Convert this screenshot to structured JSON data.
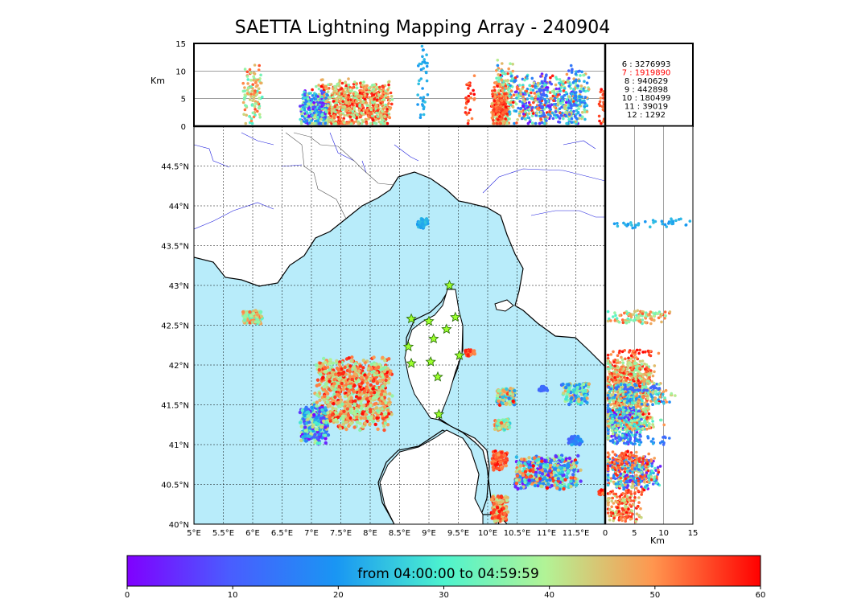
{
  "chart_data": {
    "type": "scatter",
    "title": "SAETTA Lightning Mapping Array - 240904",
    "map": {
      "lon_ticks": [
        "5°E",
        "5.5°E",
        "6°E",
        "6.5°E",
        "7°E",
        "7.5°E",
        "8°E",
        "8.5°E",
        "9°E",
        "9.5°E",
        "10°E",
        "10.5°E",
        "11°E",
        "11.5°E"
      ],
      "lat_ticks": [
        "40°N",
        "40.5°N",
        "41°N",
        "41.5°N",
        "42°N",
        "42.5°N",
        "43°N",
        "43.5°N",
        "44°N",
        "44.5°N"
      ],
      "lon_range": [
        5,
        12
      ],
      "lat_range": [
        40,
        45
      ],
      "grid": true,
      "sea_color": "#b8ecfa",
      "stations": [
        [
          8.7,
          42.58
        ],
        [
          9.0,
          42.55
        ],
        [
          9.45,
          42.6
        ],
        [
          9.3,
          42.45
        ],
        [
          9.08,
          42.33
        ],
        [
          8.65,
          42.23
        ],
        [
          9.52,
          42.12
        ],
        [
          8.7,
          42.02
        ],
        [
          9.03,
          42.04
        ],
        [
          9.15,
          41.85
        ],
        [
          9.17,
          41.38
        ],
        [
          9.35,
          43.0
        ]
      ]
    },
    "top_panel": {
      "ylabel": "Km",
      "y_ticks": [
        "0",
        "5",
        "10",
        "15"
      ],
      "y_range": [
        0,
        15
      ]
    },
    "right_panel": {
      "xlabel": "Km",
      "x_ticks": [
        "0",
        "5",
        "10",
        "15"
      ],
      "x_range": [
        0,
        15
      ]
    },
    "table": [
      {
        "label": "6 :  3276993",
        "highlight": false
      },
      {
        "label": "7 :  1919890",
        "highlight": true
      },
      {
        "label": "8 :    940629",
        "highlight": false
      },
      {
        "label": "9 :    442898",
        "highlight": false
      },
      {
        "label": "10 :    180499",
        "highlight": false
      },
      {
        "label": "11 :      39019",
        "highlight": false
      },
      {
        "label": "12 :       1292",
        "highlight": false
      }
    ],
    "colorbar": {
      "label": "from 04:00:00 to 04:59:59",
      "ticks": [
        "0",
        "10",
        "20",
        "30",
        "40",
        "50",
        "60"
      ],
      "range": [
        0,
        60
      ],
      "colormap": "rainbow"
    },
    "clusters": [
      {
        "lon": 6.0,
        "lat": 42.6,
        "alt": 5.5,
        "t0": 30,
        "t1": 55,
        "w": 0.35,
        "h": 0.18,
        "n": 110
      },
      {
        "lon": 7.7,
        "lat": 41.65,
        "alt": 4,
        "t0": 35,
        "t1": 60,
        "w": 1.4,
        "h": 0.95,
        "n": 900
      },
      {
        "lon": 7.05,
        "lat": 41.25,
        "alt": 3,
        "t0": 0,
        "t1": 45,
        "w": 0.5,
        "h": 0.5,
        "n": 280
      },
      {
        "lon": 10.3,
        "lat": 41.6,
        "alt": 6,
        "t0": 15,
        "t1": 60,
        "w": 0.35,
        "h": 0.22,
        "n": 110
      },
      {
        "lon": 10.25,
        "lat": 41.25,
        "alt": 5,
        "t0": 25,
        "t1": 55,
        "w": 0.3,
        "h": 0.15,
        "n": 70
      },
      {
        "lon": 11.0,
        "lat": 40.65,
        "alt": 4.5,
        "t0": 0,
        "t1": 60,
        "w": 1.2,
        "h": 0.45,
        "n": 420
      },
      {
        "lon": 10.2,
        "lat": 40.2,
        "alt": 3,
        "t0": 40,
        "t1": 60,
        "w": 0.3,
        "h": 0.35,
        "n": 150
      },
      {
        "lon": 11.5,
        "lat": 41.65,
        "alt": 5,
        "t0": 10,
        "t1": 50,
        "w": 0.5,
        "h": 0.3,
        "n": 120
      },
      {
        "lon": 8.9,
        "lat": 43.78,
        "alt": 9,
        "t0": 20,
        "t1": 25,
        "w": 0.2,
        "h": 0.12,
        "n": 40
      },
      {
        "lon": 10.2,
        "lat": 40.8,
        "alt": 4,
        "t0": 48,
        "t1": 60,
        "w": 0.3,
        "h": 0.25,
        "n": 80
      },
      {
        "lon": 9.7,
        "lat": 42.15,
        "alt": 5,
        "t0": 50,
        "t1": 60,
        "w": 0.18,
        "h": 0.08,
        "n": 30
      },
      {
        "lon": 11.95,
        "lat": 40.4,
        "alt": 4,
        "t0": 50,
        "t1": 60,
        "w": 0.15,
        "h": 0.08,
        "n": 25
      },
      {
        "lon": 10.95,
        "lat": 41.7,
        "alt": 5,
        "t0": 10,
        "t1": 14,
        "w": 0.15,
        "h": 0.06,
        "n": 25
      },
      {
        "lon": 11.5,
        "lat": 41.05,
        "alt": 6,
        "t0": 10,
        "t1": 25,
        "w": 0.25,
        "h": 0.12,
        "n": 40
      }
    ]
  }
}
